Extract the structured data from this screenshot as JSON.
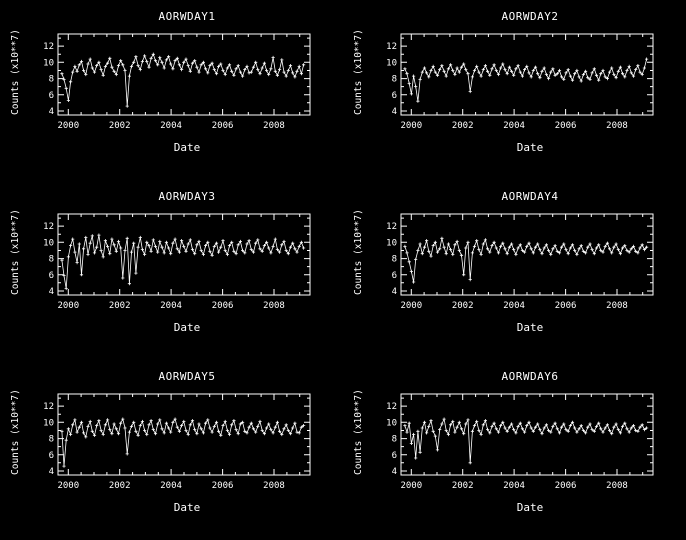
{
  "background": "#000000",
  "foreground": "#ffffff",
  "chart_data": [
    {
      "type": "line",
      "title": "AORWDAY1",
      "xlabel": "Date",
      "ylabel": "Counts (x10**7)",
      "xlim": [
        1999.6,
        2009.4
      ],
      "ylim": [
        3.5,
        13.5
      ],
      "xticks": [
        2000,
        2002,
        2004,
        2006,
        2008
      ],
      "yticks": [
        4,
        6,
        8,
        10,
        12
      ],
      "x_minor_step": 0.5,
      "y_minor_step": 1,
      "x_start": 1999.75,
      "x_end": 2009.15,
      "marker": "plus",
      "color": "#ffffff",
      "grid": false,
      "legend": "none",
      "y": [
        8.6,
        7.9,
        6.8,
        5.3,
        7.6,
        8.8,
        9.5,
        8.9,
        9.7,
        10.1,
        9.0,
        8.5,
        9.8,
        10.4,
        9.3,
        8.8,
        9.6,
        10.0,
        9.1,
        8.4,
        9.5,
        9.9,
        10.5,
        9.4,
        8.9,
        8.5,
        9.6,
        10.2,
        9.7,
        9.0,
        4.6,
        8.3,
        9.5,
        10.0,
        10.7,
        9.6,
        9.1,
        10.1,
        10.8,
        10.1,
        9.4,
        10.5,
        11.0,
        10.2,
        9.7,
        10.6,
        10.0,
        9.3,
        10.3,
        10.7,
        9.8,
        9.2,
        10.2,
        10.5,
        9.7,
        9.1,
        10.0,
        10.4,
        9.6,
        8.9,
        9.9,
        10.2,
        9.4,
        8.8,
        9.7,
        10.0,
        9.2,
        8.7,
        9.6,
        9.9,
        9.1,
        8.6,
        9.5,
        9.8,
        9.0,
        8.5,
        9.3,
        9.7,
        8.9,
        8.4,
        9.2,
        9.6,
        8.8,
        8.3,
        9.1,
        9.5,
        8.7,
        8.8,
        9.4,
        10.0,
        9.1,
        8.6,
        9.3,
        9.9,
        9.0,
        8.5,
        9.2,
        10.6,
        8.9,
        8.4,
        9.1,
        10.3,
        8.8,
        8.3,
        9.0,
        9.6,
        8.7,
        8.2,
        8.9,
        9.5,
        8.6,
        9.7
      ]
    },
    {
      "type": "line",
      "title": "AORWDAY2",
      "xlabel": "Date",
      "ylabel": "Counts (x10**7)",
      "xlim": [
        1999.6,
        2009.4
      ],
      "ylim": [
        3.5,
        13.5
      ],
      "xticks": [
        2000,
        2002,
        2004,
        2006,
        2008
      ],
      "yticks": [
        4,
        6,
        8,
        10,
        12
      ],
      "x_minor_step": 0.5,
      "y_minor_step": 1,
      "x_start": 1999.75,
      "x_end": 2009.15,
      "marker": "plus",
      "color": "#ffffff",
      "grid": false,
      "legend": "none",
      "y": [
        9.2,
        8.6,
        7.4,
        6.1,
        8.3,
        7.0,
        5.2,
        7.9,
        8.8,
        9.3,
        8.7,
        8.2,
        9.0,
        9.5,
        8.8,
        8.4,
        9.1,
        9.6,
        8.9,
        8.3,
        9.2,
        9.7,
        9.0,
        8.5,
        9.3,
        8.8,
        9.4,
        9.8,
        9.1,
        8.6,
        6.4,
        8.2,
        9.0,
        9.5,
        8.8,
        8.3,
        9.1,
        9.6,
        8.9,
        8.4,
        9.2,
        9.7,
        9.0,
        8.5,
        9.3,
        9.8,
        9.1,
        8.6,
        9.4,
        8.9,
        8.4,
        9.2,
        9.6,
        8.8,
        8.3,
        9.1,
        9.5,
        8.7,
        8.2,
        9.0,
        9.4,
        8.6,
        8.1,
        8.9,
        9.3,
        8.5,
        8.0,
        8.8,
        9.2,
        8.4,
        8.6,
        9.0,
        8.2,
        7.9,
        8.7,
        9.1,
        8.3,
        7.8,
        8.6,
        9.0,
        8.2,
        7.7,
        8.5,
        8.9,
        8.1,
        7.9,
        8.7,
        9.2,
        8.4,
        7.8,
        8.6,
        9.0,
        8.2,
        8.0,
        8.8,
        9.3,
        8.5,
        8.1,
        8.9,
        9.4,
        8.6,
        8.2,
        9.0,
        9.5,
        8.7,
        8.3,
        9.1,
        9.6,
        8.8,
        8.5,
        9.3,
        10.4
      ]
    },
    {
      "type": "line",
      "title": "AORWDAY3",
      "xlabel": "Date",
      "ylabel": "Counts (x10**7)",
      "xlim": [
        1999.6,
        2009.4
      ],
      "ylim": [
        3.5,
        13.5
      ],
      "xticks": [
        2000,
        2002,
        2004,
        2006,
        2008
      ],
      "yticks": [
        4,
        6,
        8,
        10,
        12
      ],
      "x_minor_step": 0.5,
      "y_minor_step": 1,
      "x_start": 1999.75,
      "x_end": 2009.15,
      "marker": "plus",
      "color": "#ffffff",
      "grid": false,
      "legend": "none",
      "y": [
        7.8,
        5.9,
        4.3,
        8.2,
        9.6,
        10.4,
        8.8,
        7.5,
        9.8,
        6.0,
        9.2,
        10.6,
        8.5,
        9.9,
        10.8,
        8.7,
        9.4,
        10.9,
        9.0,
        8.2,
        10.2,
        9.5,
        8.6,
        10.4,
        9.7,
        8.9,
        10.1,
        9.3,
        5.6,
        9.0,
        10.5,
        4.9,
        8.8,
        9.9,
        6.2,
        9.4,
        10.6,
        9.1,
        8.5,
        10.0,
        9.6,
        8.9,
        10.3,
        9.5,
        8.8,
        10.1,
        9.4,
        8.7,
        10.0,
        9.3,
        8.6,
        9.9,
        10.4,
        9.2,
        8.8,
        10.2,
        9.5,
        8.9,
        9.8,
        10.3,
        9.1,
        8.6,
        9.7,
        10.1,
        9.0,
        8.5,
        9.6,
        10.0,
        8.9,
        8.4,
        9.5,
        9.9,
        8.8,
        9.4,
        10.2,
        9.0,
        8.5,
        9.6,
        10.0,
        8.9,
        8.6,
        9.7,
        10.1,
        9.0,
        8.7,
        9.8,
        10.2,
        9.1,
        8.8,
        9.9,
        10.3,
        9.2,
        8.9,
        9.6,
        10.0,
        9.3,
        8.7,
        9.5,
        10.4,
        9.1,
        8.8,
        9.7,
        10.1,
        9.0,
        8.6,
        9.4,
        9.9,
        9.2,
        8.8,
        9.5,
        10.0,
        9.3
      ]
    },
    {
      "type": "line",
      "title": "AORWDAY4",
      "xlabel": "Date",
      "ylabel": "Counts (x10**7)",
      "xlim": [
        1999.6,
        2009.4
      ],
      "ylim": [
        3.5,
        13.5
      ],
      "xticks": [
        2000,
        2002,
        2004,
        2006,
        2008
      ],
      "yticks": [
        4,
        6,
        8,
        10,
        12
      ],
      "x_minor_step": 0.5,
      "y_minor_step": 1,
      "x_start": 1999.75,
      "x_end": 2009.15,
      "marker": "plus",
      "color": "#ffffff",
      "grid": false,
      "legend": "none",
      "y": [
        9.5,
        8.7,
        7.6,
        6.4,
        5.1,
        7.9,
        9.0,
        9.8,
        8.6,
        9.4,
        10.2,
        8.9,
        8.3,
        9.6,
        10.0,
        8.8,
        9.2,
        10.5,
        9.4,
        8.6,
        9.8,
        9.1,
        8.5,
        9.7,
        10.1,
        9.0,
        8.4,
        6.0,
        9.3,
        10.0,
        5.4,
        8.7,
        9.5,
        10.2,
        9.1,
        8.5,
        9.8,
        10.3,
        9.2,
        8.8,
        9.6,
        10.0,
        9.3,
        8.7,
        9.5,
        9.9,
        9.2,
        8.6,
        9.4,
        9.8,
        9.1,
        8.5,
        9.3,
        9.7,
        9.0,
        8.8,
        9.5,
        9.9,
        9.2,
        8.7,
        9.4,
        9.8,
        9.1,
        8.6,
        9.3,
        9.7,
        9.0,
        8.5,
        9.2,
        9.6,
        8.9,
        8.7,
        9.4,
        9.8,
        9.1,
        8.6,
        9.3,
        9.7,
        9.0,
        8.5,
        9.2,
        9.6,
        8.9,
        8.7,
        9.4,
        9.8,
        9.1,
        8.6,
        9.3,
        9.7,
        9.0,
        8.8,
        9.5,
        9.9,
        9.2,
        8.7,
        9.4,
        9.8,
        9.1,
        8.6,
        9.3,
        9.6,
        9.0,
        8.8,
        9.2,
        9.5,
        8.9,
        8.7,
        9.3,
        9.7,
        9.1,
        9.4
      ]
    },
    {
      "type": "line",
      "title": "AORWDAY5",
      "xlabel": "Date",
      "ylabel": "Counts (x10**7)",
      "xlim": [
        1999.6,
        2009.4
      ],
      "ylim": [
        3.5,
        13.5
      ],
      "xticks": [
        2000,
        2002,
        2004,
        2006,
        2008
      ],
      "yticks": [
        4,
        6,
        8,
        10,
        12
      ],
      "x_minor_step": 0.5,
      "y_minor_step": 1,
      "x_start": 1999.75,
      "x_end": 2009.15,
      "marker": "plus",
      "color": "#ffffff",
      "grid": false,
      "legend": "none",
      "y": [
        8.9,
        4.6,
        7.8,
        9.2,
        8.5,
        9.7,
        10.3,
        8.8,
        9.4,
        10.0,
        8.7,
        8.2,
        9.5,
        10.1,
        8.9,
        8.4,
        9.6,
        10.2,
        9.0,
        8.5,
        9.7,
        10.3,
        9.1,
        8.6,
        9.8,
        9.2,
        8.6,
        9.9,
        10.4,
        9.3,
        6.1,
        8.8,
        9.5,
        10.0,
        8.9,
        8.4,
        9.6,
        10.1,
        9.0,
        8.5,
        9.7,
        10.2,
        9.1,
        8.6,
        9.8,
        10.3,
        9.2,
        8.7,
        9.9,
        9.3,
        8.8,
        10.0,
        10.4,
        9.4,
        8.9,
        9.6,
        10.1,
        9.0,
        8.5,
        9.7,
        10.2,
        9.1,
        8.6,
        9.8,
        9.2,
        8.7,
        9.9,
        10.3,
        9.3,
        8.8,
        9.5,
        10.0,
        8.9,
        8.4,
        9.6,
        10.1,
        9.0,
        8.5,
        9.7,
        10.2,
        9.1,
        8.6,
        9.8,
        10.0,
        8.9,
        8.7,
        9.4,
        9.9,
        9.2,
        8.8,
        9.5,
        10.1,
        9.0,
        8.6,
        9.3,
        9.8,
        9.1,
        8.7,
        9.4,
        10.0,
        8.9,
        8.5,
        9.2,
        9.7,
        9.0,
        8.6,
        9.3,
        9.9,
        8.8,
        8.7,
        9.4,
        9.6
      ]
    },
    {
      "type": "line",
      "title": "AORWDAY6",
      "xlabel": "Date",
      "ylabel": "Counts (x10**7)",
      "xlim": [
        1999.6,
        2009.4
      ],
      "ylim": [
        3.5,
        13.5
      ],
      "xticks": [
        2000,
        2002,
        2004,
        2006,
        2008
      ],
      "yticks": [
        4,
        6,
        8,
        10,
        12
      ],
      "x_minor_step": 0.5,
      "y_minor_step": 1,
      "x_start": 1999.75,
      "x_end": 2009.15,
      "marker": "plus",
      "color": "#ffffff",
      "grid": false,
      "legend": "none",
      "y": [
        9.6,
        8.8,
        9.9,
        7.4,
        8.5,
        5.6,
        8.9,
        6.3,
        9.3,
        10.0,
        8.7,
        9.5,
        10.2,
        8.9,
        8.3,
        6.6,
        9.1,
        9.8,
        10.4,
        9.0,
        8.5,
        9.7,
        10.1,
        8.8,
        9.4,
        10.0,
        9.2,
        8.6,
        9.8,
        10.3,
        5.0,
        8.9,
        9.6,
        10.1,
        9.0,
        8.5,
        9.7,
        10.2,
        9.1,
        8.7,
        9.5,
        9.9,
        9.2,
        8.8,
        9.6,
        10.0,
        9.3,
        8.9,
        9.4,
        9.8,
        9.1,
        8.7,
        9.5,
        9.9,
        9.2,
        8.8,
        9.6,
        10.0,
        9.3,
        8.9,
        9.4,
        9.8,
        9.1,
        8.6,
        9.3,
        9.7,
        9.0,
        8.8,
        9.5,
        9.9,
        9.2,
        8.7,
        9.4,
        9.8,
        9.1,
        8.9,
        9.6,
        10.0,
        9.3,
        8.8,
        9.2,
        9.6,
        9.0,
        8.7,
        9.4,
        9.8,
        9.1,
        8.9,
        9.5,
        9.9,
        9.2,
        8.8,
        9.3,
        9.7,
        9.0,
        8.6,
        9.4,
        9.8,
        9.1,
        8.7,
        9.5,
        9.9,
        9.2,
        8.8,
        9.3,
        9.6,
        9.0,
        8.9,
        9.4,
        9.7,
        9.1,
        9.3
      ]
    }
  ]
}
